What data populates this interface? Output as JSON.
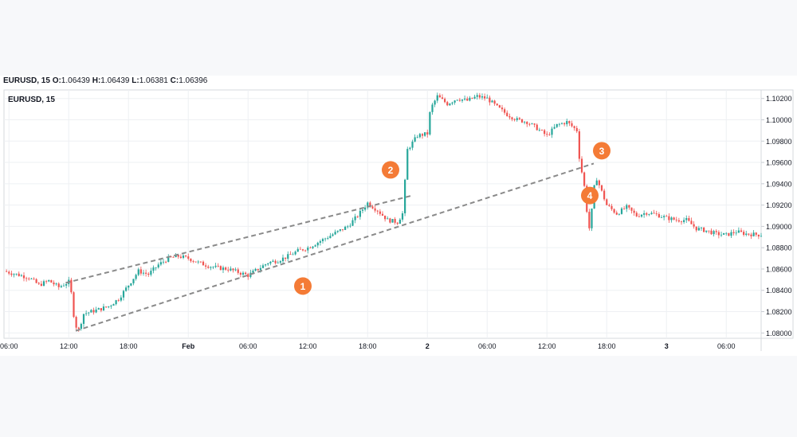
{
  "header": {
    "symbol": "EURUSD, 15",
    "open_label": "O:",
    "open": "1.06439",
    "high_label": "H:",
    "high": "1.06439",
    "low_label": "L:",
    "low": "1.06381",
    "close_label": "C:",
    "close": "1.06396"
  },
  "colors": {
    "up": "#26a69a",
    "down": "#ef5350",
    "channel": "#8a8a8a",
    "marker": "#f47b36",
    "grid": "#eef0f3",
    "axis_text": "#131722"
  },
  "chart_data": {
    "type": "candlestick",
    "title": "EURUSD, 15",
    "legend_position": "top-left",
    "grid": true,
    "ylim": [
      1.0795,
      1.1028
    ],
    "y_ticks": [
      "1.10200",
      "1.10000",
      "1.09800",
      "1.09600",
      "1.09400",
      "1.09200",
      "1.09000",
      "1.08800",
      "1.08600",
      "1.08400",
      "1.08200",
      "1.08000"
    ],
    "x_ticks": [
      "06:00",
      "12:00",
      "18:00",
      "Feb",
      "06:00",
      "12:00",
      "18:00",
      "2",
      "06:00",
      "12:00",
      "18:00",
      "3",
      "06:00"
    ],
    "x_tick_hours": [
      0,
      6,
      12,
      18,
      24,
      30,
      36,
      42,
      48,
      54,
      60,
      66,
      72
    ],
    "x_range_hours": [
      -0.5,
      75.5
    ],
    "candle_hours": 0.25,
    "price_path": [
      [
        -0.5,
        1.0858
      ],
      [
        2,
        1.0852
      ],
      [
        3,
        1.0845
      ],
      [
        4,
        1.0849
      ],
      [
        5,
        1.0843
      ],
      [
        6,
        1.0848
      ],
      [
        6.3,
        1.0835
      ],
      [
        6.6,
        1.0808
      ],
      [
        7,
        1.0803
      ],
      [
        7.5,
        1.0818
      ],
      [
        9,
        1.0822
      ],
      [
        10,
        1.0825
      ],
      [
        11,
        1.0832
      ],
      [
        12,
        1.0845
      ],
      [
        13,
        1.0858
      ],
      [
        14,
        1.0855
      ],
      [
        15,
        1.0864
      ],
      [
        16,
        1.087
      ],
      [
        17,
        1.0872
      ],
      [
        18,
        1.087
      ],
      [
        19,
        1.0866
      ],
      [
        20,
        1.0863
      ],
      [
        21,
        1.0861
      ],
      [
        22,
        1.086
      ],
      [
        23,
        1.0857
      ],
      [
        24,
        1.0854
      ],
      [
        25,
        1.086
      ],
      [
        26,
        1.0866
      ],
      [
        27,
        1.0868
      ],
      [
        28,
        1.0872
      ],
      [
        29,
        1.0877
      ],
      [
        30,
        1.088
      ],
      [
        31,
        1.0885
      ],
      [
        32,
        1.089
      ],
      [
        33,
        1.0895
      ],
      [
        34,
        1.09
      ],
      [
        35,
        1.091
      ],
      [
        36,
        1.0922
      ],
      [
        37,
        1.0915
      ],
      [
        38,
        1.0906
      ],
      [
        39,
        1.0904
      ],
      [
        39.5,
        1.0912
      ],
      [
        40,
        1.0972
      ],
      [
        41,
        1.0985
      ],
      [
        42,
        1.0987
      ],
      [
        42.3,
        1.101
      ],
      [
        43,
        1.1022
      ],
      [
        44,
        1.1015
      ],
      [
        45,
        1.102
      ],
      [
        46,
        1.1018
      ],
      [
        47,
        1.1022
      ],
      [
        48,
        1.102
      ],
      [
        49,
        1.1012
      ],
      [
        50,
        1.1005
      ],
      [
        51,
        1.1
      ],
      [
        52,
        1.0998
      ],
      [
        53,
        1.0992
      ],
      [
        54,
        1.0985
      ],
      [
        55,
        1.0995
      ],
      [
        56,
        1.0998
      ],
      [
        57,
        1.099
      ],
      [
        57.3,
        1.096
      ],
      [
        57.7,
        1.0942
      ],
      [
        58,
        1.0915
      ],
      [
        58.3,
        1.0895
      ],
      [
        58.7,
        1.0935
      ],
      [
        59,
        1.0945
      ],
      [
        60,
        1.092
      ],
      [
        61,
        1.0912
      ],
      [
        62,
        1.0918
      ],
      [
        63,
        1.091
      ],
      [
        64,
        1.0913
      ],
      [
        65,
        1.0911
      ],
      [
        66,
        1.0908
      ],
      [
        67,
        1.0906
      ],
      [
        68,
        1.0906
      ],
      [
        69,
        1.0898
      ],
      [
        70,
        1.0896
      ],
      [
        71,
        1.0893
      ],
      [
        72,
        1.0892
      ],
      [
        73,
        1.0895
      ],
      [
        74,
        1.0893
      ],
      [
        75.5,
        1.0892
      ]
    ],
    "channel_lines": [
      {
        "name": "upper",
        "from": [
          5.7,
          1.0847
        ],
        "to": [
          40.5,
          1.0929
        ]
      },
      {
        "name": "lower",
        "from": [
          6.7,
          1.0802
        ],
        "to": [
          58.7,
          1.0959
        ]
      }
    ],
    "annotations": [
      {
        "text": "1",
        "at": [
          29.5,
          1.0844
        ]
      },
      {
        "text": "2",
        "at": [
          38.3,
          1.0953
        ]
      },
      {
        "text": "3",
        "at": [
          59.5,
          1.0971
        ]
      },
      {
        "text": "4",
        "at": [
          58.3,
          1.0929
        ]
      }
    ]
  }
}
